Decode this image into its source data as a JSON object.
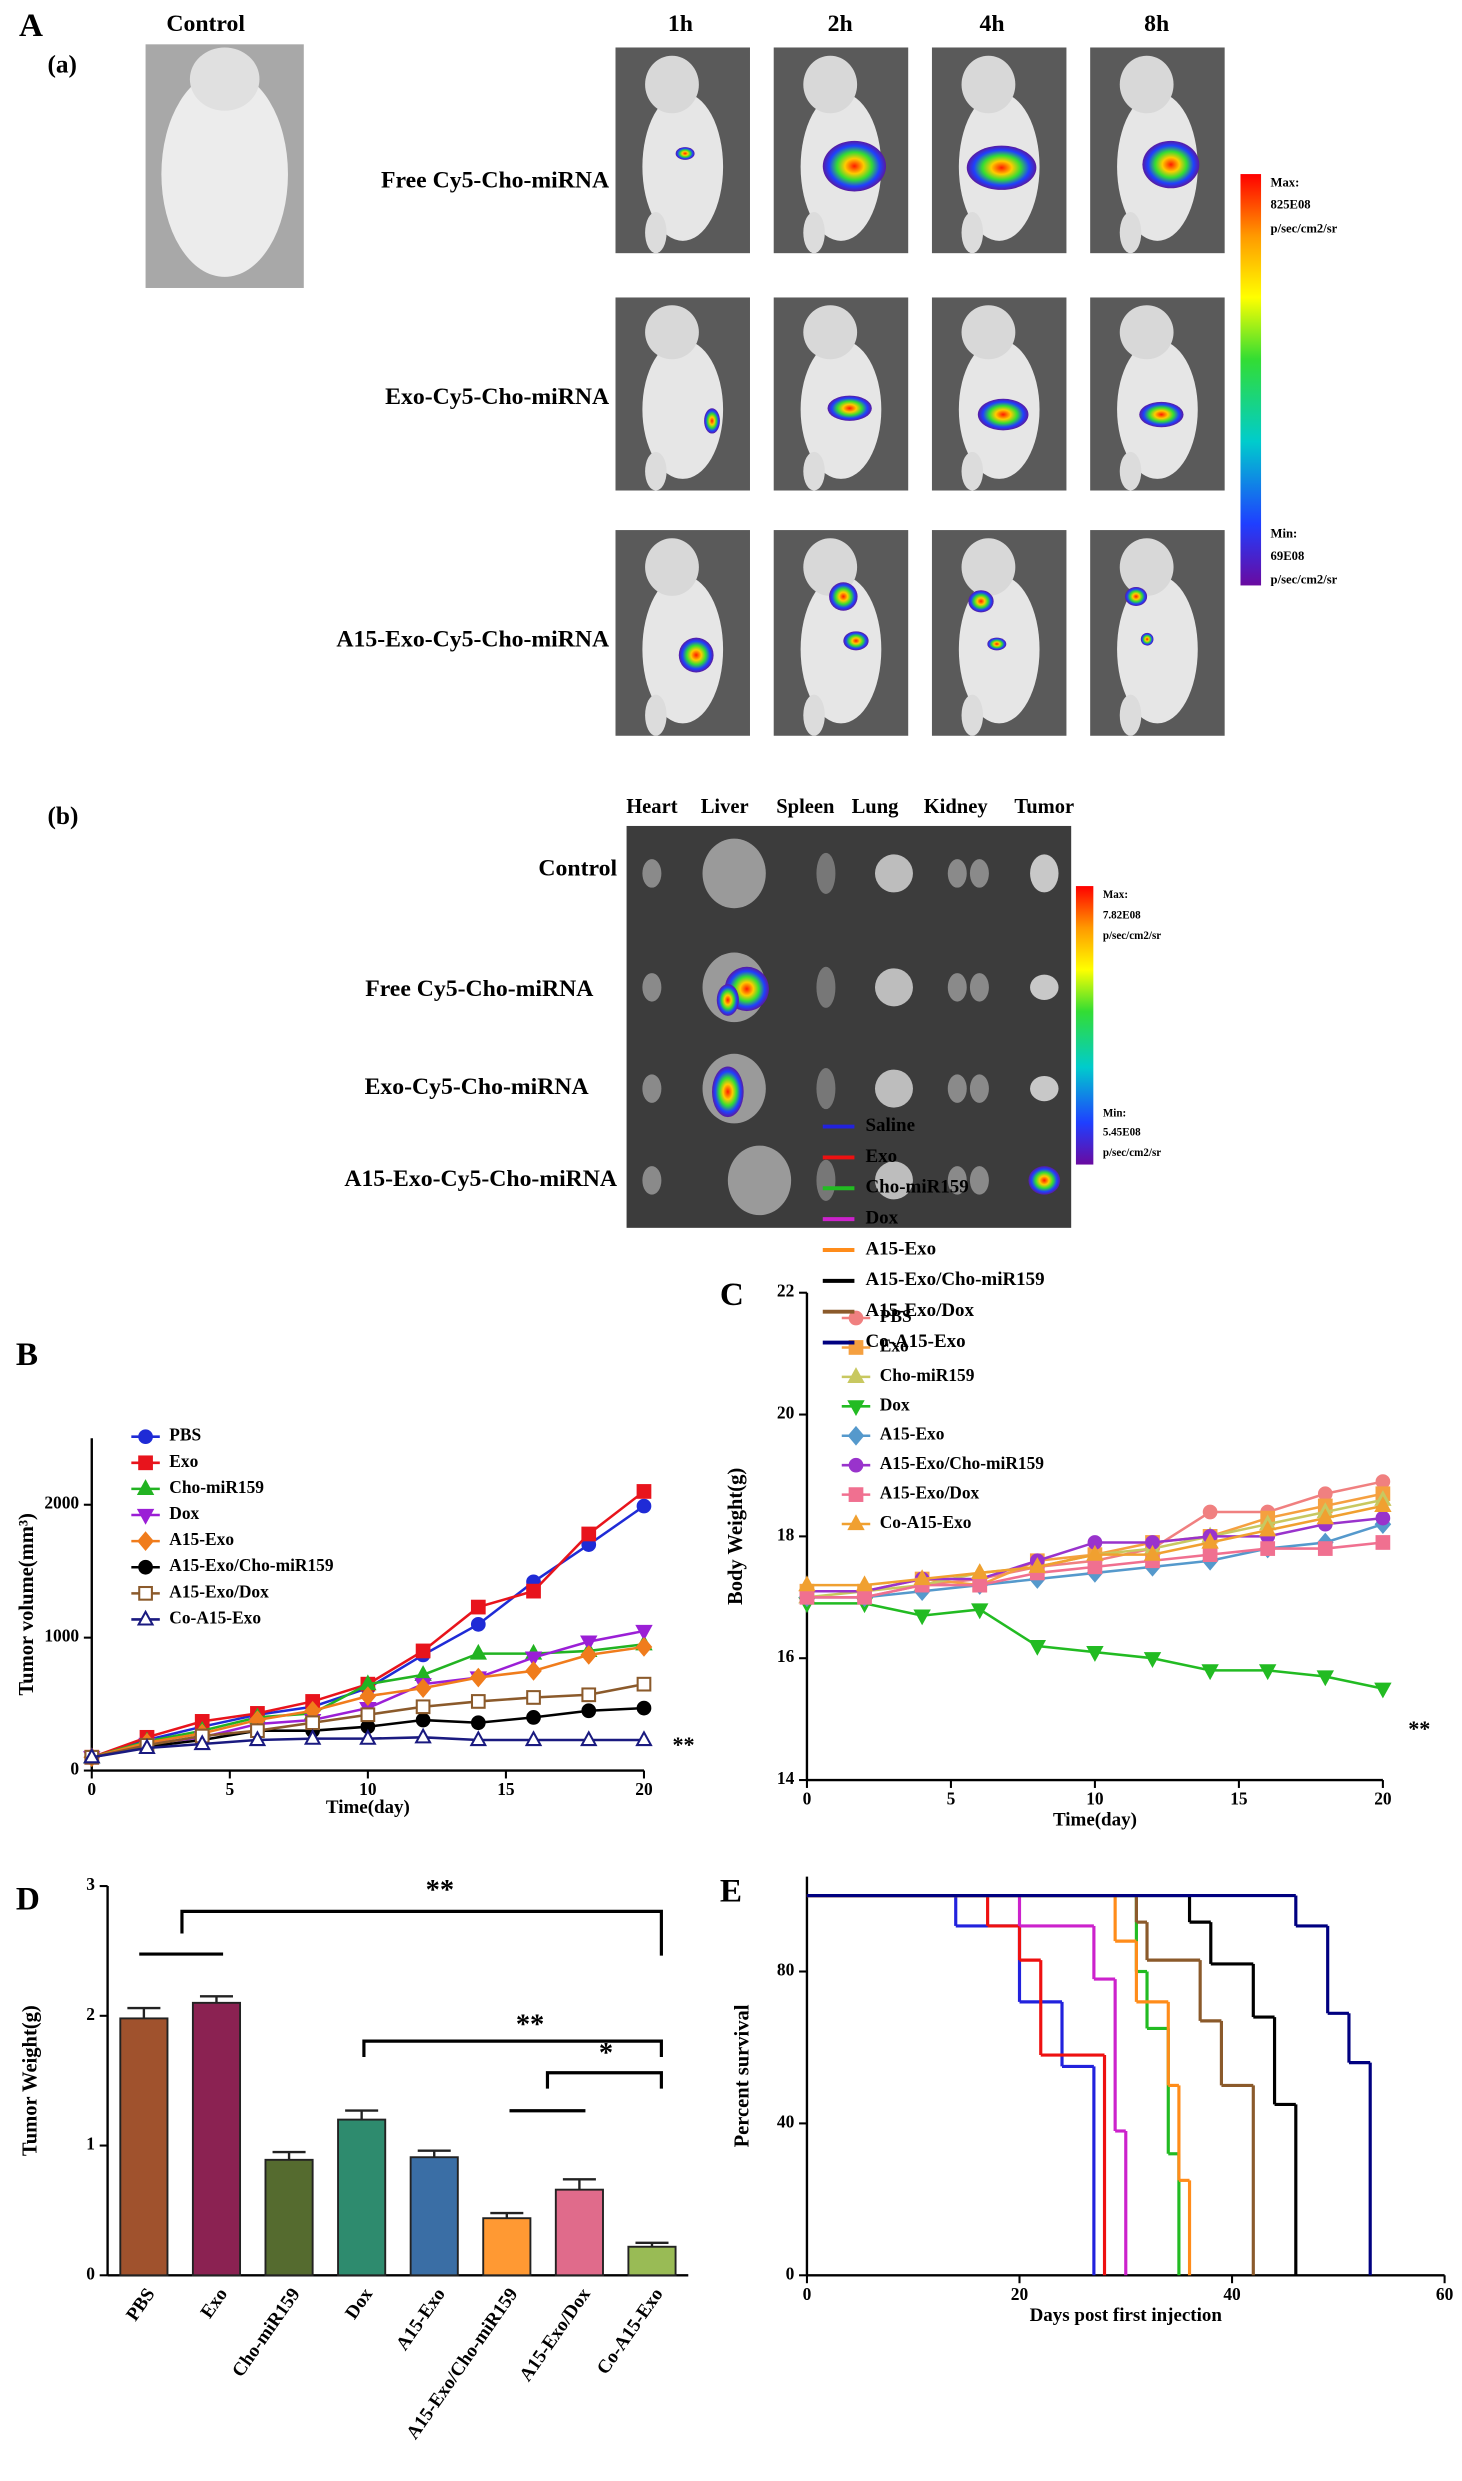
{
  "figure": {
    "panel_labels": [
      "A",
      "B",
      "C",
      "D",
      "E"
    ],
    "sub_labels": [
      "(a)",
      "(b)"
    ],
    "a": {
      "control": "Control",
      "times": [
        "1h",
        "2h",
        "4h",
        "8h"
      ],
      "rows": [
        "Free Cy5-Cho-miRNA",
        "Exo-Cy5-Cho-miRNA",
        "A15-Exo-Cy5-Cho-miRNA"
      ],
      "scale": [
        "Max:",
        "825E08",
        "p/sec/cm2/sr",
        "Min:",
        "69E08",
        "p/sec/cm2/sr"
      ]
    },
    "b": {
      "organs": [
        "Heart",
        "Liver",
        "Spleen",
        "Lung",
        "Kidney",
        "Tumor"
      ],
      "rows": [
        "Control",
        "Free Cy5-Cho-miRNA",
        "Exo-Cy5-Cho-miRNA",
        "A15-Exo-Cy5-Cho-miRNA"
      ],
      "scale": [
        "Max:",
        "7.82E08",
        "p/sec/cm2/sr",
        "Min:",
        "5.45E08",
        "p/sec/cm2/sr"
      ]
    }
  },
  "chart_data": [
    {
      "type": "line",
      "xlabel": "Time(day)",
      "ylabel": "Tumor volume(mm³)",
      "x": [
        0,
        2,
        4,
        6,
        8,
        10,
        12,
        14,
        16,
        18,
        20
      ],
      "xlim": [
        0,
        20
      ],
      "xticks": [
        0,
        5,
        10,
        15,
        20
      ],
      "ylim": [
        0,
        2500
      ],
      "yticks": [
        0,
        1000,
        2000
      ],
      "legend": "upper left",
      "annotation": "**",
      "series": [
        {
          "name": "PBS",
          "color": "#1f2bd6",
          "marker": "circle",
          "values": [
            100,
            230,
            330,
            420,
            480,
            620,
            870,
            1100,
            1420,
            1700,
            1990
          ]
        },
        {
          "name": "Exo",
          "color": "#e8141c",
          "marker": "square",
          "values": [
            100,
            250,
            370,
            430,
            520,
            650,
            900,
            1230,
            1350,
            1780,
            2100
          ]
        },
        {
          "name": "Cho-miR159",
          "color": "#22b322",
          "marker": "triangle",
          "values": [
            100,
            220,
            300,
            400,
            430,
            650,
            720,
            880,
            880,
            900,
            950
          ]
        },
        {
          "name": "Dox",
          "color": "#9b1fd6",
          "marker": "triangle-down",
          "values": [
            100,
            200,
            250,
            350,
            380,
            470,
            650,
            700,
            850,
            970,
            1050
          ]
        },
        {
          "name": "A15-Exo",
          "color": "#f07c1c",
          "marker": "diamond",
          "values": [
            100,
            210,
            280,
            380,
            450,
            560,
            620,
            700,
            750,
            870,
            930
          ]
        },
        {
          "name": "A15-Exo/Cho-miR159",
          "color": "#000000",
          "marker": "circle",
          "values": [
            100,
            180,
            230,
            300,
            300,
            330,
            380,
            360,
            400,
            450,
            470
          ]
        },
        {
          "name": "A15-Exo/Dox",
          "color": "#8b5a2b",
          "marker": "square-open",
          "values": [
            100,
            190,
            260,
            300,
            360,
            420,
            480,
            520,
            550,
            570,
            650
          ]
        },
        {
          "name": "Co-A15-Exo",
          "color": "#1a1a80",
          "marker": "triangle-open",
          "values": [
            100,
            170,
            200,
            230,
            240,
            240,
            250,
            230,
            230,
            230,
            230
          ]
        }
      ]
    },
    {
      "type": "line",
      "xlabel": "Time(day)",
      "ylabel": "Body Weight(g)",
      "x": [
        0,
        2,
        4,
        6,
        8,
        10,
        12,
        14,
        16,
        18,
        20
      ],
      "xlim": [
        0,
        20
      ],
      "xticks": [
        0,
        5,
        10,
        15,
        20
      ],
      "ylim": [
        14,
        22
      ],
      "yticks": [
        14,
        16,
        18,
        20,
        22
      ],
      "legend": "upper left",
      "annotation": "**",
      "series": [
        {
          "name": "PBS",
          "color": "#f08080",
          "marker": "circle",
          "values": [
            17.0,
            17.0,
            17.2,
            17.3,
            17.5,
            17.6,
            17.8,
            18.4,
            18.4,
            18.7,
            18.9
          ]
        },
        {
          "name": " Exo",
          "color": "#f5a040",
          "marker": "square",
          "values": [
            17.1,
            17.1,
            17.3,
            17.2,
            17.6,
            17.7,
            17.9,
            18.0,
            18.3,
            18.5,
            18.7
          ]
        },
        {
          "name": "Cho-miR159",
          "color": "#c8c860",
          "marker": "triangle",
          "values": [
            17.0,
            17.1,
            17.2,
            17.4,
            17.5,
            17.7,
            17.8,
            18.0,
            18.2,
            18.4,
            18.6
          ]
        },
        {
          "name": "Dox",
          "color": "#22bb22",
          "marker": "triangle-down",
          "values": [
            16.9,
            16.9,
            16.7,
            16.8,
            16.2,
            16.1,
            16.0,
            15.8,
            15.8,
            15.7,
            15.5
          ]
        },
        {
          "name": "A15-Exo",
          "color": "#5599cc",
          "marker": "diamond",
          "values": [
            17.0,
            17.0,
            17.1,
            17.2,
            17.3,
            17.4,
            17.5,
            17.6,
            17.8,
            17.9,
            18.2
          ]
        },
        {
          "name": "A15-Exo/Cho-miR159",
          "color": "#9933cc",
          "marker": "circle",
          "values": [
            17.1,
            17.1,
            17.3,
            17.3,
            17.6,
            17.9,
            17.9,
            18.0,
            18.0,
            18.2,
            18.3
          ]
        },
        {
          "name": "A15-Exo/Dox",
          "color": "#f07090",
          "marker": "square",
          "values": [
            17.0,
            17.0,
            17.2,
            17.2,
            17.4,
            17.5,
            17.6,
            17.7,
            17.8,
            17.8,
            17.9
          ]
        },
        {
          "name": "Co-A15-Exo",
          "color": "#f0a030",
          "marker": "triangle",
          "values": [
            17.2,
            17.2,
            17.3,
            17.4,
            17.5,
            17.7,
            17.7,
            17.9,
            18.1,
            18.3,
            18.5
          ]
        }
      ]
    },
    {
      "type": "bar",
      "ylabel": "Tumor Weight(g)",
      "categories": [
        "PBS",
        "Exo",
        "Cho-miR159",
        "Dox",
        "A15-Exo",
        "A15-Exo/Cho-miR159",
        "A15-Exo/Dox",
        "Co-A15-Exo"
      ],
      "values": [
        1.98,
        2.1,
        0.89,
        1.2,
        0.91,
        0.44,
        0.66,
        0.22
      ],
      "errors": [
        0.08,
        0.05,
        0.06,
        0.07,
        0.05,
        0.04,
        0.08,
        0.03
      ],
      "colors": [
        "#a0522d",
        "#8b2252",
        "#556b2f",
        "#2e8b6e",
        "#3a6ea5",
        "#ff9933",
        "#e06b8b",
        "#99bb55"
      ],
      "ylim": [
        0,
        3
      ],
      "yticks": [
        0,
        1,
        2,
        3
      ],
      "annotations": [
        "**",
        "**",
        "*"
      ]
    },
    {
      "type": "step",
      "xlabel": "Days post first injection",
      "ylabel": "Percent survival",
      "xlim": [
        0,
        60
      ],
      "xticks": [
        0,
        20,
        40,
        60
      ],
      "ylim": [
        0,
        105
      ],
      "yticks": [
        0,
        40,
        80
      ],
      "legend": "upper left",
      "series": [
        {
          "name": "Saline",
          "color": "#2222dd",
          "x": [
            0,
            14,
            20,
            24,
            27
          ],
          "values": [
            100,
            92,
            72,
            55,
            0
          ]
        },
        {
          "name": "Exo",
          "color": "#ee1111",
          "x": [
            0,
            17,
            20,
            22,
            28
          ],
          "values": [
            100,
            92,
            83,
            58,
            0
          ]
        },
        {
          "name": "Cho-miR159",
          "color": "#22bb22",
          "x": [
            0,
            31,
            32,
            34,
            35
          ],
          "values": [
            100,
            80,
            65,
            32,
            0
          ]
        },
        {
          "name": "Dox",
          "color": "#cc22cc",
          "x": [
            0,
            20,
            27,
            29,
            30
          ],
          "values": [
            100,
            92,
            78,
            38,
            0
          ]
        },
        {
          "name": "A15-Exo",
          "color": "#ff8c1a",
          "x": [
            0,
            29,
            31,
            34,
            35,
            36
          ],
          "values": [
            100,
            88,
            72,
            50,
            25,
            0
          ]
        },
        {
          "name": "A15-Exo/Cho-miR159",
          "color": "#000000",
          "x": [
            0,
            36,
            38,
            42,
            44,
            46
          ],
          "values": [
            100,
            93,
            82,
            68,
            45,
            0
          ]
        },
        {
          "name": "A15-Exo/Dox",
          "color": "#8b5a2b",
          "x": [
            0,
            31,
            32,
            37,
            39,
            42
          ],
          "values": [
            100,
            93,
            83,
            67,
            50,
            0
          ]
        },
        {
          "name": "Co-A15-Exo",
          "color": "#000080",
          "x": [
            0,
            46,
            49,
            51,
            53
          ],
          "values": [
            100,
            92,
            69,
            56,
            0
          ]
        }
      ]
    }
  ]
}
